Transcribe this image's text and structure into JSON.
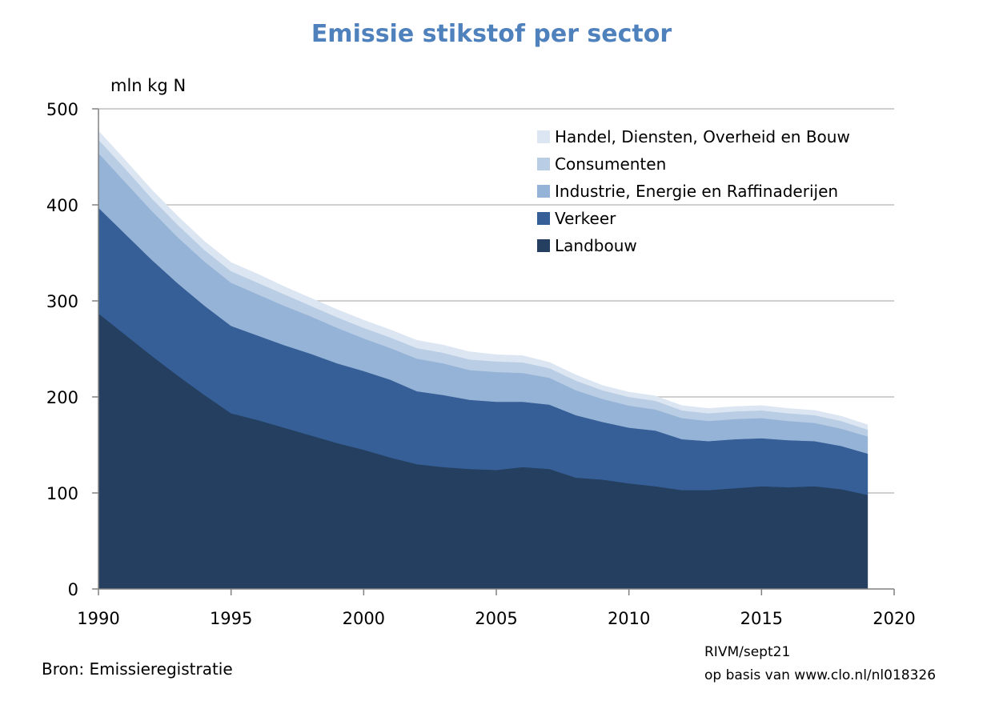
{
  "chart_data": {
    "type": "area",
    "stacked": true,
    "title": "Emissie stikstof per sector",
    "ylabel": "mln kg N",
    "xlabel": "",
    "xlim": [
      1990,
      2020
    ],
    "ylim": [
      0,
      500
    ],
    "xticks": [
      "1990",
      "1995",
      "2000",
      "2005",
      "2010",
      "2015",
      "2020"
    ],
    "yticks": [
      "0",
      "100",
      "200",
      "300",
      "400",
      "500"
    ],
    "grid": true,
    "legend_position": "top-right",
    "x": [
      1990,
      1991,
      1992,
      1993,
      1994,
      1995,
      1996,
      1997,
      1998,
      1999,
      2000,
      2001,
      2002,
      2003,
      2004,
      2005,
      2006,
      2007,
      2008,
      2009,
      2010,
      2011,
      2012,
      2013,
      2014,
      2015,
      2016,
      2017,
      2018,
      2019
    ],
    "series": [
      {
        "name": "Landbouw",
        "color": "#243f60",
        "values": [
          287,
          265,
          243,
          222,
          202,
          183,
          176,
          168,
          160,
          152,
          145,
          137,
          130,
          127,
          125,
          124,
          127,
          125,
          116,
          114,
          110,
          107,
          103,
          103,
          105,
          107,
          106,
          107,
          104,
          98
        ]
      },
      {
        "name": "Verkeer",
        "color": "#355f96",
        "values": [
          110,
          105,
          100,
          96,
          93,
          91,
          88,
          86,
          85,
          83,
          82,
          81,
          76,
          75,
          72,
          71,
          68,
          67,
          65,
          60,
          58,
          58,
          53,
          51,
          51,
          50,
          49,
          47,
          45,
          43
        ]
      },
      {
        "name": "Industrie, Energie en Raffinaderijen",
        "color": "#95b3d7",
        "values": [
          57,
          54,
          51,
          48,
          46,
          45,
          43,
          41,
          39,
          37,
          34,
          33,
          34,
          33,
          31,
          31,
          30,
          28,
          26,
          24,
          23,
          22,
          22,
          21,
          21,
          21,
          20,
          19,
          18,
          18
        ]
      },
      {
        "name": "Consumenten",
        "color": "#b9cde5",
        "values": [
          14,
          14,
          13,
          13,
          12,
          12,
          12,
          12,
          11,
          11,
          11,
          11,
          11,
          11,
          11,
          11,
          11,
          10,
          10,
          9,
          9,
          9,
          8,
          8,
          8,
          8,
          8,
          8,
          8,
          7
        ]
      },
      {
        "name": "Handel, Diensten, Overheid en Bouw",
        "color": "#dce6f2",
        "values": [
          9,
          9,
          9,
          9,
          9,
          9,
          9,
          8,
          8,
          8,
          8,
          8,
          8,
          8,
          8,
          7,
          7,
          6,
          6,
          5,
          5,
          5,
          5,
          5,
          5,
          5,
          5,
          5,
          5,
          5
        ]
      }
    ],
    "legend_order": [
      "Handel, Diensten, Overheid en Bouw",
      "Consumenten",
      "Industrie, Energie en Raffinaderijen",
      "Verkeer",
      "Landbouw"
    ],
    "source": "Bron: Emissieregistratie",
    "credit_line1": "RIVM/sept21",
    "credit_line2": "op basis van www.clo.nl/nl018326"
  }
}
